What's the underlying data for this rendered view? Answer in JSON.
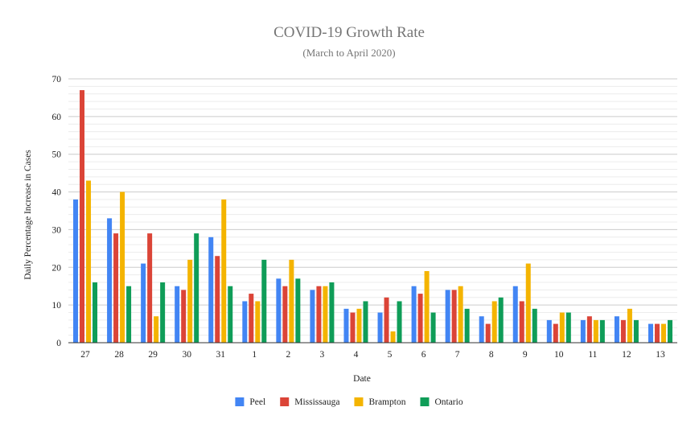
{
  "chart_data": {
    "type": "bar",
    "title": "COVID-19 Growth Rate",
    "subtitle": "(March to April 2020)",
    "xlabel": "Date",
    "ylabel": "Daily Percentage Increase in Cases",
    "ylim": [
      0,
      70
    ],
    "y_ticks": [
      0,
      10,
      20,
      30,
      40,
      50,
      60,
      70
    ],
    "minor_step": 2,
    "grid": true,
    "legend_position": "bottom",
    "categories": [
      "27",
      "28",
      "29",
      "30",
      "31",
      "1",
      "2",
      "3",
      "4",
      "5",
      "6",
      "7",
      "8",
      "9",
      "10",
      "11",
      "12",
      "13"
    ],
    "series": [
      {
        "name": "Peel",
        "color": "#4285F4",
        "values": [
          38,
          33,
          21,
          15,
          28,
          11,
          17,
          14,
          9,
          8,
          15,
          14,
          7,
          15,
          6,
          6,
          7,
          5
        ]
      },
      {
        "name": "Mississauga",
        "color": "#DB4437",
        "values": [
          67,
          29,
          29,
          14,
          23,
          13,
          15,
          15,
          8,
          12,
          13,
          14,
          5,
          11,
          5,
          7,
          6,
          5
        ]
      },
      {
        "name": "Brampton",
        "color": "#F4B400",
        "values": [
          43,
          40,
          7,
          22,
          38,
          11,
          22,
          15,
          9,
          3,
          19,
          15,
          11,
          21,
          8,
          6,
          9,
          5
        ]
      },
      {
        "name": "Ontario",
        "color": "#0F9D58",
        "values": [
          16,
          15,
          16,
          29,
          15,
          22,
          17,
          16,
          11,
          11,
          8,
          9,
          12,
          9,
          8,
          6,
          6,
          6
        ]
      }
    ]
  }
}
